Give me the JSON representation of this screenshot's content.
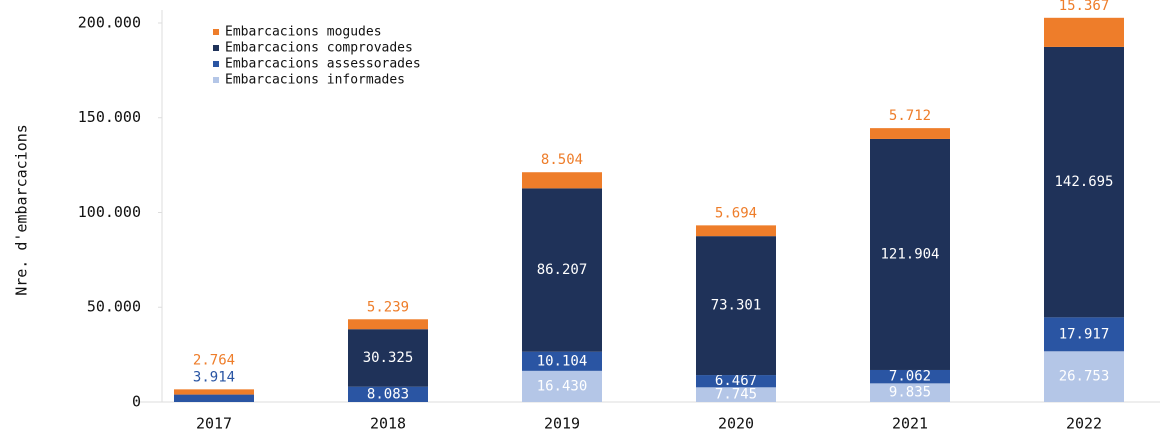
{
  "chart_data": {
    "type": "stacked_bar",
    "y_label": "Nre. d'embarcacions",
    "categories": [
      "2017",
      "2018",
      "2019",
      "2020",
      "2021",
      "2022"
    ],
    "series": [
      {
        "name": "Embarcacions mogudes",
        "color": "#ee7d2a",
        "values": [
          2764,
          5239,
          8504,
          5694,
          5712,
          15367
        ],
        "value_labels": [
          "2.764",
          "5.239",
          "8.504",
          "5.694",
          "5.712",
          "15.367"
        ]
      },
      {
        "name": "Embarcacions comprovades",
        "color": "#1f3259",
        "values": [
          0,
          30325,
          86207,
          73301,
          121904,
          142695
        ],
        "value_labels": [
          null,
          "30.325",
          "86.207",
          "73.301",
          "121.904",
          "142.695"
        ]
      },
      {
        "name": "Embarcacions assessorades",
        "color": "#2a55a3",
        "values": [
          3914,
          8083,
          10104,
          6467,
          7062,
          17917
        ],
        "value_labels": [
          "3.914",
          "8.083",
          "10.104",
          "6.467",
          "7.062",
          "17.917"
        ]
      },
      {
        "name": "Embarcacions informades",
        "color": "#b4c6e7",
        "values": [
          0,
          0,
          16430,
          7745,
          9835,
          26753
        ],
        "value_labels": [
          null,
          null,
          "16.430",
          "7.745",
          "9.835",
          "26.753"
        ]
      }
    ],
    "ylim": [
      0,
      205000
    ],
    "yticks": [
      0,
      {
        "value": 50000,
        "label": "50.000"
      },
      {
        "value": 100000,
        "label": "100.000"
      },
      {
        "value": 150000,
        "label": "150.000"
      },
      {
        "value": 200000,
        "label": "200.000"
      }
    ],
    "legend": "upper left"
  }
}
